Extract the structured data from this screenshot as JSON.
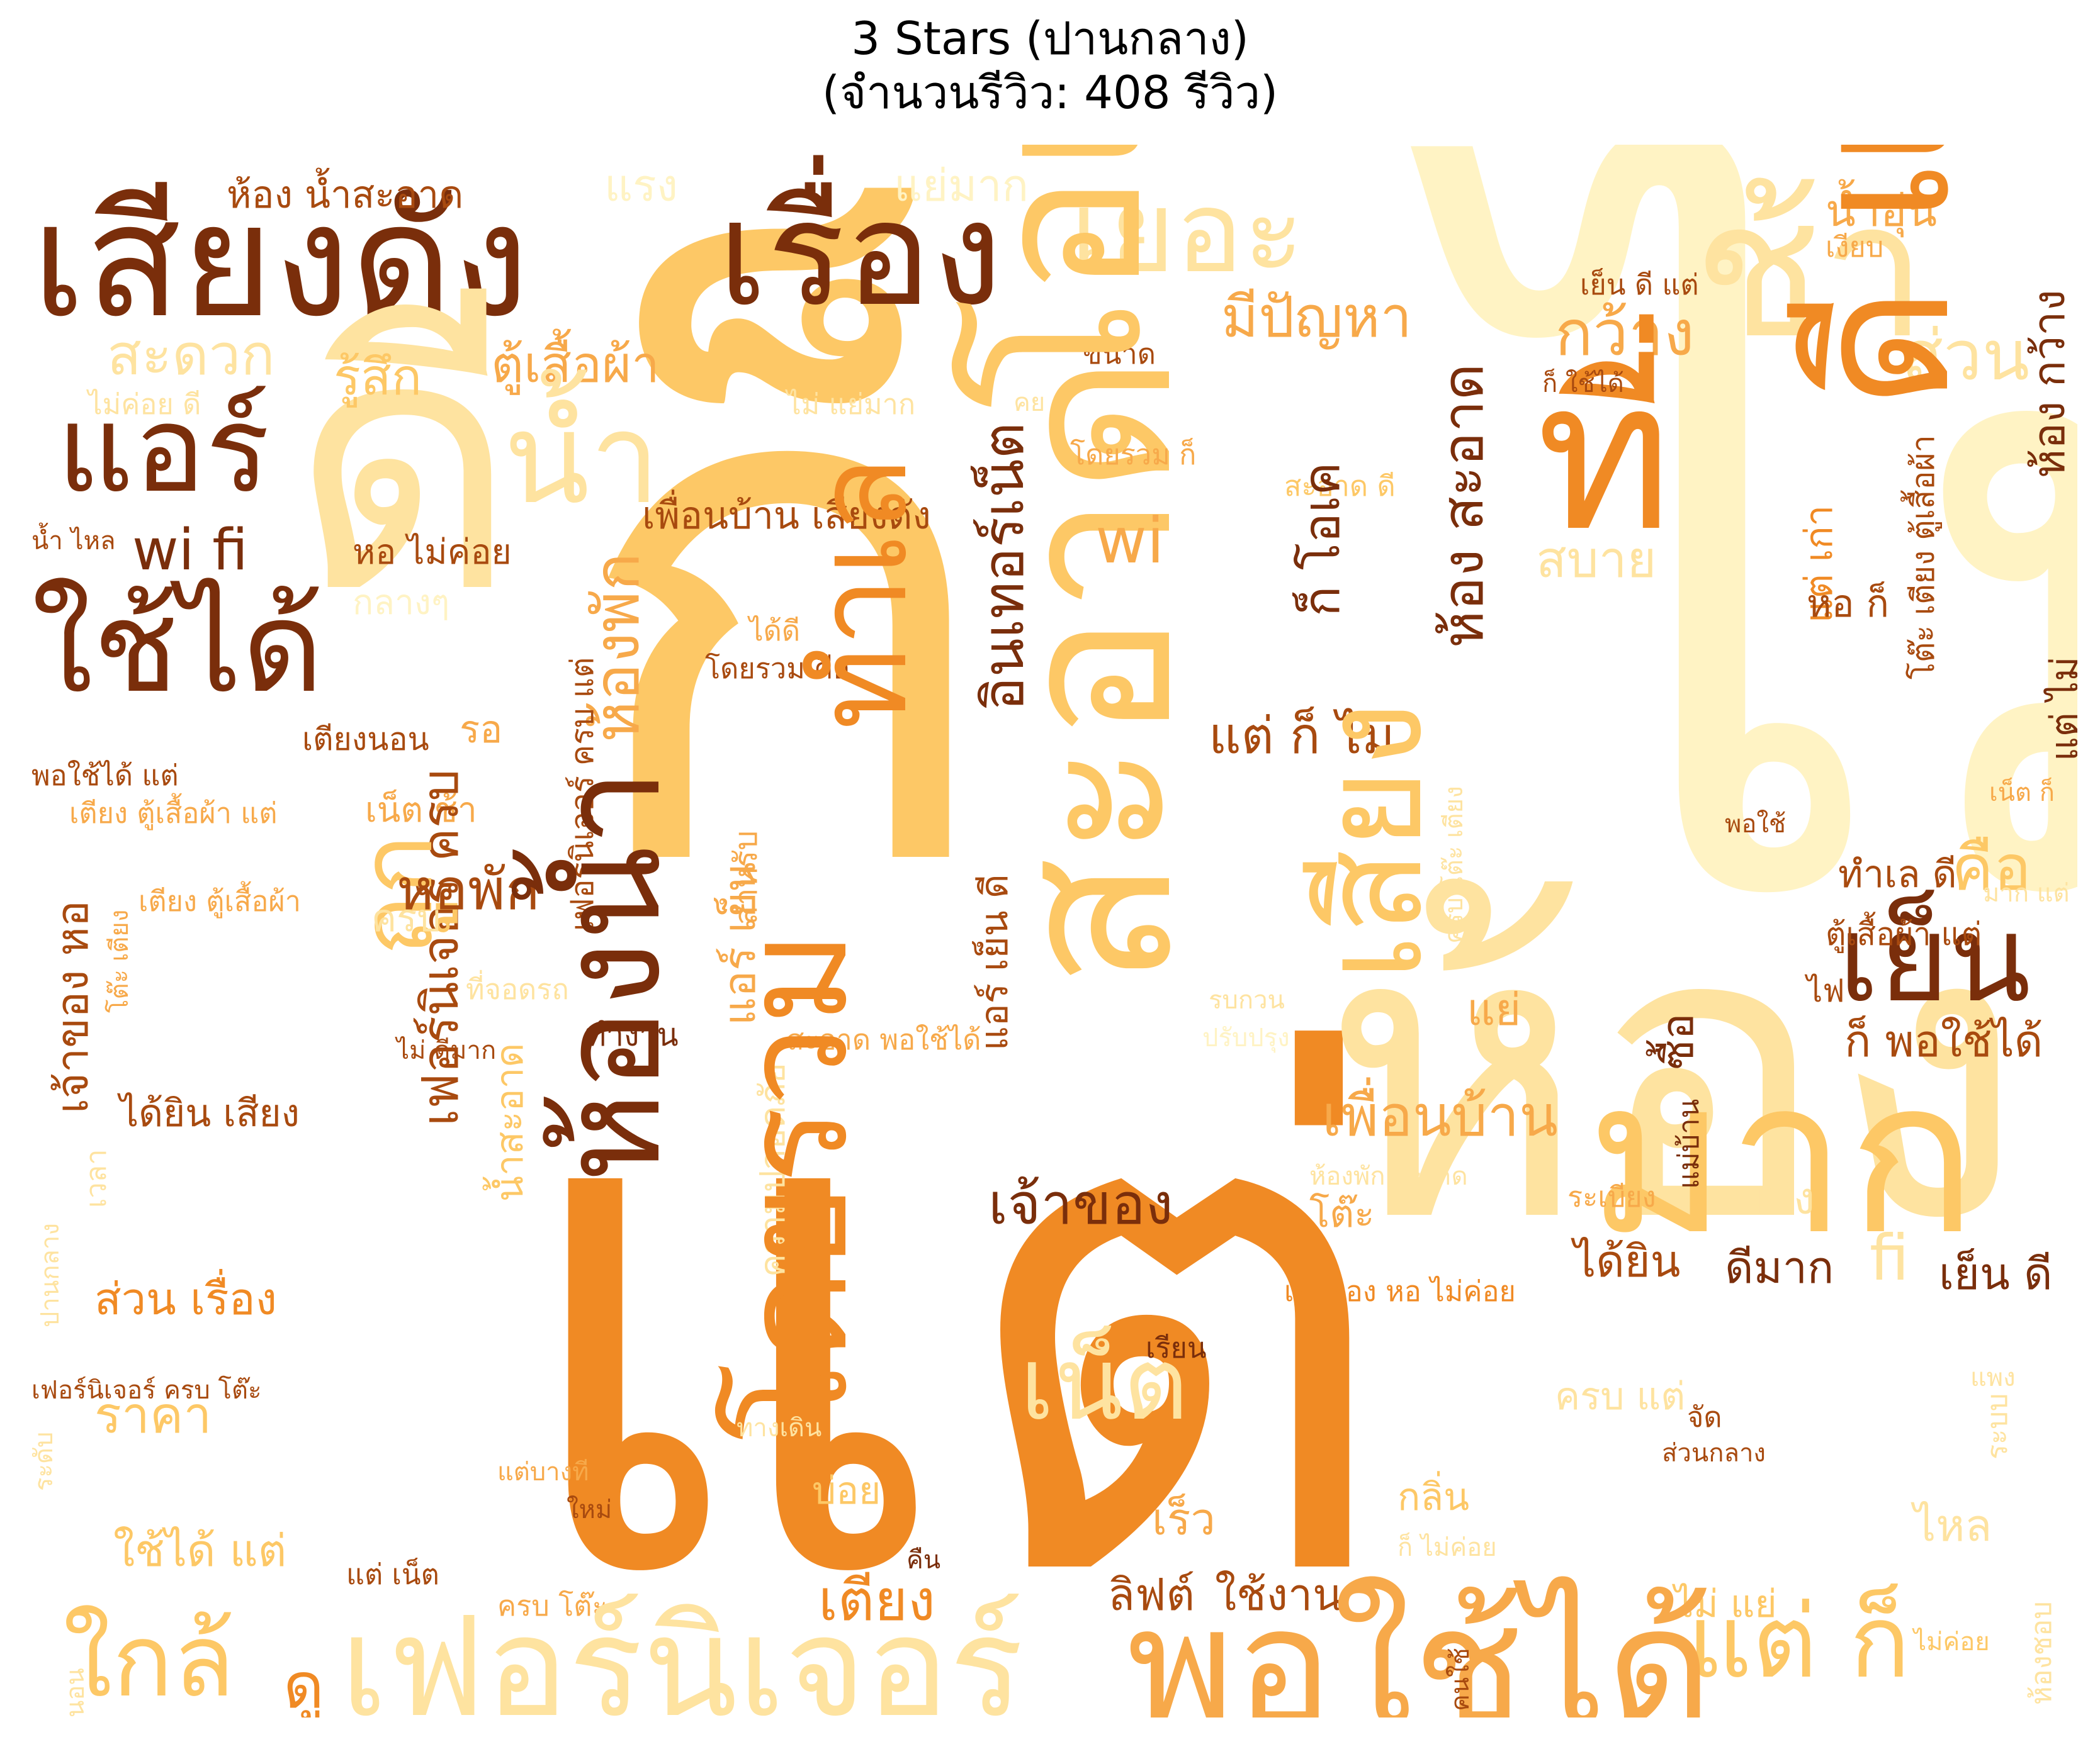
{
  "title": {
    "line1": "3 Stars (ปานกลาง)",
    "line2": "(จำนวนรีวิว: 408 รีวิว)"
  },
  "palette": {
    "darkest": "#7a2e0b",
    "dark": "#a84a0f",
    "orange": "#f08a24",
    "amber": "#f7a94a",
    "gold": "#fdc866",
    "light": "#fee3a0",
    "pale": "#fff3c4"
  },
  "words": [
    {
      "text": "ไม่",
      "color": "#fff3c4"
    },
    {
      "text": "ก็",
      "color": "#fdc866"
    },
    {
      "text": "แต่",
      "color": "#f08a24"
    },
    {
      "text": "ห้อง",
      "color": "#fee3a0"
    },
    {
      "text": "เสียงดัง",
      "color": "#7a2e0b"
    },
    {
      "text": "เรื่อง",
      "color": "#7a2e0b"
    },
    {
      "text": "แอร์",
      "color": "#7a2e0b"
    },
    {
      "text": "ใช้ได้",
      "color": "#7a2e0b"
    },
    {
      "text": "wi fi",
      "color": "#7a2e0b"
    },
    {
      "text": "ห้อง น้ำสะอาด",
      "color": "#a84a0f"
    },
    {
      "text": "แรง",
      "color": "#fff3c4"
    },
    {
      "text": "แย่มาก",
      "color": "#fff3c4"
    },
    {
      "text": "เยอะ",
      "color": "#fee3a0"
    },
    {
      "text": "ดี",
      "color": "#fee3a0"
    },
    {
      "text": "สะดวก",
      "color": "#fee3a0"
    },
    {
      "text": "รู้สึก",
      "color": "#fdc866"
    },
    {
      "text": "ตู้เสื้อผ้า",
      "color": "#f7a94a"
    },
    {
      "text": "มีปัญหา",
      "color": "#f7a94a"
    },
    {
      "text": "ไม่ค่อย ดี",
      "color": "#fee3a0"
    },
    {
      "text": "ไม่ แย่มาก",
      "color": "#fee3a0"
    },
    {
      "text": "ขนาด",
      "color": "#a84a0f"
    },
    {
      "text": "ช้า",
      "color": "#fee3a0"
    },
    {
      "text": "กว้าง",
      "color": "#f7a94a"
    },
    {
      "text": "ที่",
      "color": "#f08a24"
    },
    {
      "text": "น้ำอุ่น",
      "color": "#f7a94a"
    },
    {
      "text": "เงียบ",
      "color": "#f7a94a"
    },
    {
      "text": "เย็น ดี แต่",
      "color": "#a84a0f"
    },
    {
      "text": "ก็ ใช้ได้",
      "color": "#a84a0f"
    },
    {
      "text": "ส่วน",
      "color": "#fee3a0"
    },
    {
      "text": "ดี แต่",
      "color": "#f08a24"
    },
    {
      "text": "ห้อง กว้าง",
      "color": "#7a2e0b"
    },
    {
      "text": "น้ำ",
      "color": "#fee3a0"
    },
    {
      "text": "โอเค",
      "color": "#fdc866"
    },
    {
      "text": "สะอาด",
      "color": "#fdc866"
    },
    {
      "text": "โดยรวม ก็",
      "color": "#f7a94a"
    },
    {
      "text": "สะอาด ดี",
      "color": "#fdc866"
    },
    {
      "text": "เพื่อนบ้าน เสียงดัง",
      "color": "#a84a0f"
    },
    {
      "text": "หอ ไม่ค่อย",
      "color": "#a84a0f"
    },
    {
      "text": "wi",
      "color": "#f7a94a"
    },
    {
      "text": "ก็ โอเค",
      "color": "#7a2e0b"
    },
    {
      "text": "ห้อง สะอาด",
      "color": "#7a2e0b"
    },
    {
      "text": "สบาย",
      "color": "#fee3a0"
    },
    {
      "text": "แต่ เก่า",
      "color": "#f08a24"
    },
    {
      "text": "หอ ก็",
      "color": "#a84a0f"
    },
    {
      "text": "โต๊ะ เตียง ตู้เสื้อผ้า",
      "color": "#a84a0f"
    },
    {
      "text": "แต่ ไม่",
      "color": "#7a2e0b"
    },
    {
      "text": "น้ำ ไหล",
      "color": "#a84a0f"
    },
    {
      "text": "กลางๆ",
      "color": "#fff3c4"
    },
    {
      "text": "ได้ดี",
      "color": "#f7a94a"
    },
    {
      "text": "โดยรวม คือ",
      "color": "#a84a0f"
    },
    {
      "text": "เตียงนอน",
      "color": "#a84a0f"
    },
    {
      "text": "รอ",
      "color": "#f7a94a"
    },
    {
      "text": "ห้องพัก",
      "color": "#f7a94a"
    },
    {
      "text": "อินเทอร์เน็ต",
      "color": "#7a2e0b"
    },
    {
      "text": "เฟอร์นิเจอร์ ครบ แต่",
      "color": "#a84a0f"
    },
    {
      "text": "ทำเล",
      "color": "#f08a24"
    },
    {
      "text": "แต่ ก็ ไม่",
      "color": "#a84a0f"
    },
    {
      "text": "เสียง",
      "color": "#fdc866"
    },
    {
      "text": "พอใช้ได้ แต่",
      "color": "#a84a0f"
    },
    {
      "text": "เตียง ตู้เสื้อผ้า แต่",
      "color": "#f7a94a"
    },
    {
      "text": "เน็ต ช้า",
      "color": "#f7a94a"
    },
    {
      "text": "สำหรับ",
      "color": "#f7a94a"
    },
    {
      "text": "แอร์ เย็น",
      "color": "#f7a94a"
    },
    {
      "text": "แอร์ เย็น ดี",
      "color": "#a84a0f"
    },
    {
      "text": "เฟอร์นิเจอร์ ครบ",
      "color": "#a84a0f"
    },
    {
      "text": "ถูก",
      "color": "#fdc866"
    },
    {
      "text": "เจ้าของ หอ",
      "color": "#a84a0f"
    },
    {
      "text": "หอพัก",
      "color": "#a84a0f"
    },
    {
      "text": "ครบ",
      "color": "#fee3a0"
    },
    {
      "text": "เตียง ตู้เสื้อผ้า",
      "color": "#f7a94a"
    },
    {
      "text": "ที่จอดรถ",
      "color": "#fee3a0"
    },
    {
      "text": "โต๊ะ เตียง",
      "color": "#f7a94a"
    },
    {
      "text": "ไม่ ดีมาก",
      "color": "#a84a0f"
    },
    {
      "text": "ทำงาน",
      "color": "#7a2e0b"
    },
    {
      "text": "สะอาด พอใช้ได้",
      "color": "#f7a94a"
    },
    {
      "text": "รบกวน",
      "color": "#fee3a0"
    },
    {
      "text": "ปรับปรุง",
      "color": "#fff3c4"
    },
    {
      "text": "ไฟ",
      "color": "#a84a0f"
    },
    {
      "text": "แย่",
      "color": "#f7a94a"
    },
    {
      "text": "เย็น",
      "color": "#7a2e0b"
    },
    {
      "text": "ก็ พอใช้ได้",
      "color": "#a84a0f"
    },
    {
      "text": "คือ",
      "color": "#fdc866"
    },
    {
      "text": "ทำเล ดี",
      "color": "#a84a0f"
    },
    {
      "text": "ตู้เสื้อผ้า แต่",
      "color": "#a84a0f"
    },
    {
      "text": "พอใช้",
      "color": "#a84a0f"
    },
    {
      "text": "เน็ต ก็",
      "color": "#f7a94a"
    },
    {
      "text": "มาก แต่",
      "color": "#fee3a0"
    },
    {
      "text": "ครบ โต๊ะ เตียง",
      "color": "#fee3a0"
    },
    {
      "text": "มาก",
      "color": "#fdc866"
    },
    {
      "text": "เพื่อนบ้าน",
      "color": "#f7a94a"
    },
    {
      "text": "ซื้อ",
      "color": "#7a2e0b"
    },
    {
      "text": "แม่บ้าน",
      "color": "#7a2e0b"
    },
    {
      "text": "ห้องพัก สะอาด",
      "color": "#fee3a0"
    },
    {
      "text": "ระเบียง",
      "color": "#f7a94a"
    },
    {
      "text": "ผนัง",
      "color": "#fee3a0"
    },
    {
      "text": "เจ้าของ",
      "color": "#7a2e0b"
    },
    {
      "text": "โต๊ะ",
      "color": "#f7a94a"
    },
    {
      "text": "ได้ยิน",
      "color": "#a84a0f"
    },
    {
      "text": "ดีมาก",
      "color": "#7a2e0b"
    },
    {
      "text": "fi",
      "color": "#fee3a0"
    },
    {
      "text": "เย็น ดี",
      "color": "#7a2e0b"
    },
    {
      "text": "เจ้าของ หอ ไม่ค่อย",
      "color": "#f08a24"
    },
    {
      "text": "ได้ยิน เสียง",
      "color": "#a84a0f"
    },
    {
      "text": "ส่วน เรื่อง",
      "color": "#f08a24"
    },
    {
      "text": "เวลา",
      "color": "#fee3a0"
    },
    {
      "text": "ปานกลาง",
      "color": "#fee3a0"
    },
    {
      "text": "น้ำสะอาด",
      "color": "#fdc866"
    },
    {
      "text": "ความปลอดภัย",
      "color": "#fee3a0"
    },
    {
      "text": "ห้องน้ำ",
      "color": "#7a2e0b"
    },
    {
      "text": "โดยรวม",
      "color": "#f08a24"
    },
    {
      "text": "เฟอร์นิเจอร์ ครบ โต๊ะ",
      "color": "#a84a0f"
    },
    {
      "text": "ราคา",
      "color": "#fdc866"
    },
    {
      "text": "ใช้ได้ แต่",
      "color": "#fdc866"
    },
    {
      "text": "ระดับ",
      "color": "#fee3a0"
    },
    {
      "text": "แต่บางที",
      "color": "#f7a94a"
    },
    {
      "text": "ใหม่",
      "color": "#a84a0f"
    },
    {
      "text": "ทางเดิน",
      "color": "#fee3a0"
    },
    {
      "text": "บ่อย",
      "color": "#fdc866"
    },
    {
      "text": "เร็ว",
      "color": "#f7a94a"
    },
    {
      "text": "เรียน",
      "color": "#7a2e0b"
    },
    {
      "text": "เน็ต",
      "color": "#fee3a0"
    },
    {
      "text": "ครบ แต่",
      "color": "#fee3a0"
    },
    {
      "text": "จัด",
      "color": "#a84a0f"
    },
    {
      "text": "ส่วนกลาง",
      "color": "#a84a0f"
    },
    {
      "text": "แพง",
      "color": "#fee3a0"
    },
    {
      "text": "ระบบ",
      "color": "#fee3a0"
    },
    {
      "text": "กลิ่น",
      "color": "#fdc866"
    },
    {
      "text": "ไหล",
      "color": "#fee3a0"
    },
    {
      "text": "ก็ ไม่ค่อย",
      "color": "#fee3a0"
    },
    {
      "text": "คืน",
      "color": "#7a2e0b"
    },
    {
      "text": "แต่ เน็ต",
      "color": "#a84a0f"
    },
    {
      "text": "ครบ โต๊ะ",
      "color": "#f7a94a"
    },
    {
      "text": "เตียง",
      "color": "#f08a24"
    },
    {
      "text": "ลิฟต์",
      "color": "#a84a0f"
    },
    {
      "text": "ใช้งาน",
      "color": "#a84a0f"
    },
    {
      "text": "ไม่ แย่",
      "color": "#fdc866"
    },
    {
      "text": "แต่ ก็",
      "color": "#fdc866"
    },
    {
      "text": "พอใช้ได้",
      "color": "#f7a94a"
    },
    {
      "text": "ใกล้",
      "color": "#fdc866"
    },
    {
      "text": "ดู",
      "color": "#f08a24"
    },
    {
      "text": "เฟอร์นิเจอร์",
      "color": "#fee3a0"
    },
    {
      "text": "คนใช้",
      "color": "#a84a0f"
    },
    {
      "text": "นอน",
      "color": "#fee3a0"
    },
    {
      "text": "ห้องชอบ",
      "color": "#fee3a0"
    },
    {
      "text": "ไม่ค่อย",
      "color": "#fdc866"
    },
    {
      "text": "คย",
      "color": "#fee3a0"
    }
  ]
}
